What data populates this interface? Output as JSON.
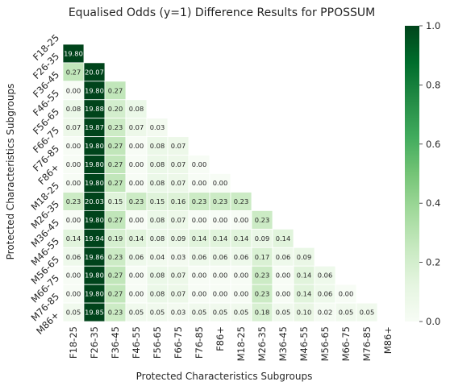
{
  "chart_data": {
    "type": "heatmap",
    "title": "Equalised Odds (y=1) Difference Results for PPOSSUM",
    "xlabel": "Protected Characteristics Subgroups",
    "ylabel": "Protected Characteristics Subgroups",
    "categories": [
      "F18-25",
      "F26-35",
      "F36-45",
      "F46-55",
      "F56-65",
      "F66-75",
      "F76-85",
      "F86+",
      "M18-25",
      "M26-35",
      "M36-45",
      "M46-55",
      "M56-65",
      "M66-75",
      "M76-85",
      "M86+"
    ],
    "mask": "upper-triangle-including-diagonal",
    "rows": [
      {
        "label": "F18-25",
        "values": []
      },
      {
        "label": "F26-35",
        "values": [
          "19.80"
        ]
      },
      {
        "label": "F36-45",
        "values": [
          "0.27",
          "20.07"
        ]
      },
      {
        "label": "F46-55",
        "values": [
          "0.00",
          "19.80",
          "0.27"
        ]
      },
      {
        "label": "F56-65",
        "values": [
          "0.08",
          "19.88",
          "0.20",
          "0.08"
        ]
      },
      {
        "label": "F66-75",
        "values": [
          "0.07",
          "19.87",
          "0.23",
          "0.07",
          "0.03"
        ]
      },
      {
        "label": "F76-85",
        "values": [
          "0.00",
          "19.80",
          "0.27",
          "0.00",
          "0.08",
          "0.07"
        ]
      },
      {
        "label": "F86+",
        "values": [
          "0.00",
          "19.80",
          "0.27",
          "0.00",
          "0.08",
          "0.07",
          "0.00"
        ]
      },
      {
        "label": "M18-25",
        "values": [
          "0.00",
          "19.80",
          "0.27",
          "0.00",
          "0.08",
          "0.07",
          "0.00",
          "0.00"
        ]
      },
      {
        "label": "M26-35",
        "values": [
          "0.23",
          "20.03",
          "0.15",
          "0.23",
          "0.15",
          "0.16",
          "0.23",
          "0.23",
          "0.23"
        ]
      },
      {
        "label": "M36-45",
        "values": [
          "0.00",
          "19.80",
          "0.27",
          "0.00",
          "0.08",
          "0.07",
          "0.00",
          "0.00",
          "0.00",
          "0.23"
        ]
      },
      {
        "label": "M46-55",
        "values": [
          "0.14",
          "19.94",
          "0.19",
          "0.14",
          "0.08",
          "0.09",
          "0.14",
          "0.14",
          "0.14",
          "0.09",
          "0.14"
        ]
      },
      {
        "label": "M56-65",
        "values": [
          "0.06",
          "19.86",
          "0.23",
          "0.06",
          "0.04",
          "0.03",
          "0.06",
          "0.06",
          "0.06",
          "0.17",
          "0.06",
          "0.09"
        ]
      },
      {
        "label": "M66-75",
        "values": [
          "0.00",
          "19.80",
          "0.27",
          "0.00",
          "0.08",
          "0.07",
          "0.00",
          "0.00",
          "0.00",
          "0.23",
          "0.00",
          "0.14",
          "0.06"
        ]
      },
      {
        "label": "M76-85",
        "values": [
          "0.00",
          "19.80",
          "0.27",
          "0.00",
          "0.08",
          "0.07",
          "0.00",
          "0.00",
          "0.00",
          "0.23",
          "0.00",
          "0.14",
          "0.06",
          "0.00"
        ]
      },
      {
        "label": "M86+",
        "values": [
          "0.05",
          "19.85",
          "0.23",
          "0.05",
          "0.05",
          "0.03",
          "0.05",
          "0.05",
          "0.05",
          "0.18",
          "0.05",
          "0.10",
          "0.02",
          "0.05",
          "0.05"
        ]
      }
    ],
    "colorbar": {
      "cmap": "Greens",
      "vmin": 0,
      "vmax": 1,
      "ticks": [
        "0.0",
        "0.2",
        "0.4",
        "0.6",
        "0.8",
        "1.0"
      ]
    },
    "colors": {
      "low": "#f7fcf5",
      "high": "#00441b",
      "cell_border": "#ffffff",
      "label_dark": "#262626",
      "label_light": "#ffffff"
    }
  }
}
